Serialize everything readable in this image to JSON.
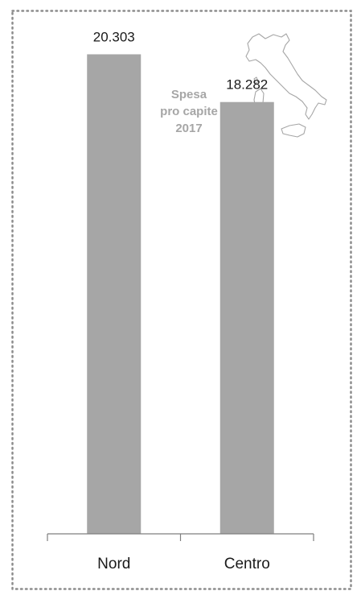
{
  "title": {
    "line1": "Spesa",
    "line2": "pro capite",
    "line3": "2017"
  },
  "map_icon": "italy-map-icon",
  "colors": {
    "bar": "#a6a6a6",
    "title": "#a6a6a6",
    "axis": "#7f7f7f",
    "border": "#8c8c8c",
    "text": "#1a1a1a"
  },
  "chart_data": {
    "type": "bar",
    "categories": [
      "Nord",
      "Centro"
    ],
    "values": [
      20303,
      18282
    ],
    "value_labels": [
      "20.303",
      "18.282"
    ],
    "title": "Spesa pro capite 2017",
    "xlabel": "",
    "ylabel": "",
    "ylim": [
      0,
      21000
    ],
    "grid": false,
    "legend": "none"
  }
}
